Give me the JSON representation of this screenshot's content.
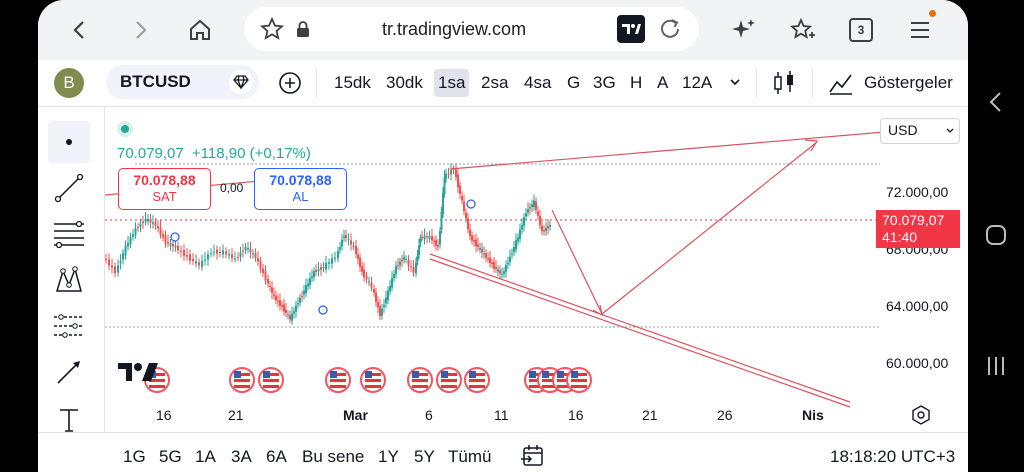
{
  "browser": {
    "url": "tr.tradingview.com",
    "tab_count": "3",
    "icons": [
      "back-icon",
      "forward-icon",
      "home-icon",
      "star-icon",
      "lock-icon",
      "tradingview-icon",
      "reload-icon",
      "sparkle-icon",
      "bookmark-add-icon",
      "tabs-icon",
      "menu-icon"
    ]
  },
  "toolbar": {
    "avatar": "B",
    "symbol": "BTCUSD",
    "intervals": [
      "15dk",
      "30dk",
      "1sa",
      "2sa",
      "4sa",
      "G",
      "3G",
      "H",
      "A",
      "12A"
    ],
    "selected_interval": "1sa",
    "indicators_label": "Göstergeler"
  },
  "quote": {
    "price": "70.079,07",
    "change": "+118,90 (+0,17%)",
    "sell_price": "70.078,88",
    "sell_label": "SAT",
    "buy_price": "70.078,88",
    "buy_label": "AL",
    "spread": "0,00"
  },
  "axis": {
    "currency": "USD",
    "price_levels": [
      "72.000,00",
      "68.000,00",
      "64.000,00",
      "60.000,00"
    ],
    "current_price": "70.079,07",
    "countdown": "41:40",
    "dates": [
      "16",
      "21",
      "Mar",
      "6",
      "11",
      "16",
      "21",
      "26",
      "Nis"
    ]
  },
  "ranges": {
    "items": [
      "1G",
      "5G",
      "1A",
      "3A",
      "6A",
      "Bu sene",
      "1Y",
      "5Y",
      "Tümü"
    ],
    "clock": "18:18:20 UTC+3"
  },
  "colors": {
    "up": "#26a69a",
    "down": "#ef5350",
    "drawing": "#d9535f",
    "sell": "#f23645",
    "buy": "#2962ff"
  }
}
